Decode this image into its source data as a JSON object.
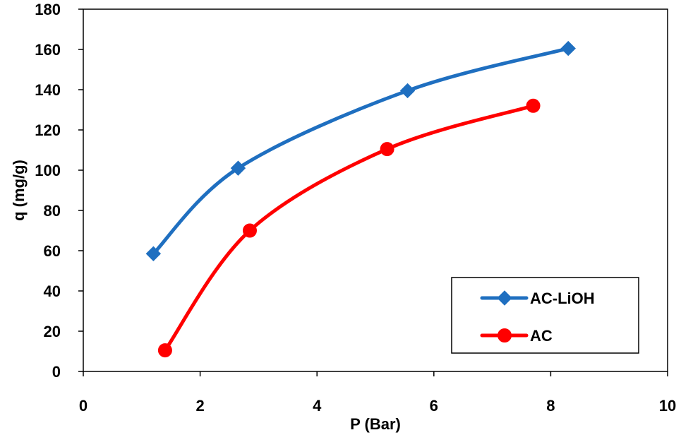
{
  "chart_data": {
    "type": "line",
    "title": "",
    "xlabel": "P (Bar)",
    "ylabel": "q (mg/g)",
    "xlim": [
      0,
      10
    ],
    "ylim": [
      0,
      180
    ],
    "xticks": [
      0,
      2,
      4,
      6,
      8,
      10
    ],
    "yticks": [
      0,
      20,
      40,
      60,
      80,
      100,
      120,
      140,
      160,
      180
    ],
    "xtick_labels": [
      "0",
      "2",
      "4",
      "6",
      "8",
      "10"
    ],
    "ytick_labels": [
      "0",
      "20",
      "40",
      "60",
      "80",
      "100",
      "120",
      "140",
      "160",
      "180"
    ],
    "grid": false,
    "smooth": true,
    "legend_position": "bottom-right",
    "series": [
      {
        "name": "AC-LiOH",
        "color": "#1f6fc0",
        "marker": "diamond",
        "x": [
          1.2,
          2.65,
          5.55,
          8.3
        ],
        "y": [
          58.5,
          101,
          139.5,
          160.5
        ]
      },
      {
        "name": "AC",
        "color": "#ff0000",
        "marker": "circle",
        "x": [
          1.4,
          2.85,
          5.2,
          7.7
        ],
        "y": [
          10.5,
          70,
          110.5,
          132
        ]
      }
    ]
  }
}
